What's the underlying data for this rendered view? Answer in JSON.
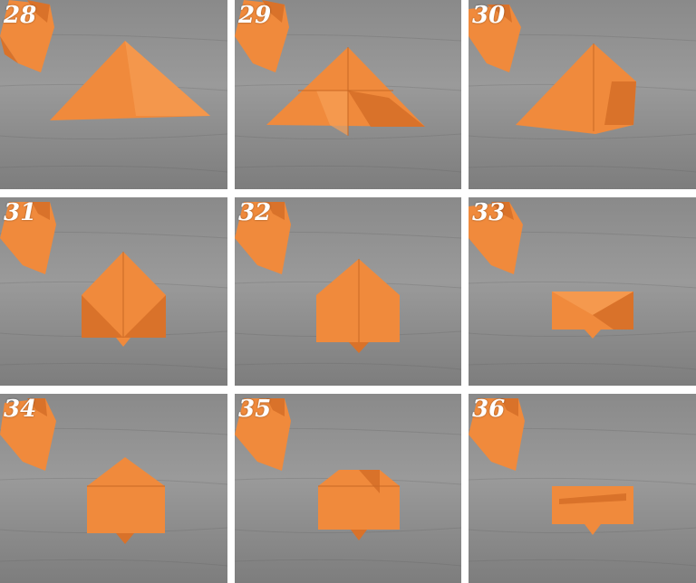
{
  "steps": [
    {
      "number": "28"
    },
    {
      "number": "29"
    },
    {
      "number": "30"
    },
    {
      "number": "31"
    },
    {
      "number": "32"
    },
    {
      "number": "33"
    },
    {
      "number": "34"
    },
    {
      "number": "35"
    },
    {
      "number": "36"
    }
  ],
  "colors": {
    "paper": "#f08a3c",
    "paper_dark": "#d9722a",
    "paper_light": "#f7a056",
    "wood": "#8f8f8f",
    "gutter": "#ffffff"
  },
  "icons": {
    "completed_model": "origami-rooster-icon",
    "work_in_progress": "folded-paper-icon"
  }
}
